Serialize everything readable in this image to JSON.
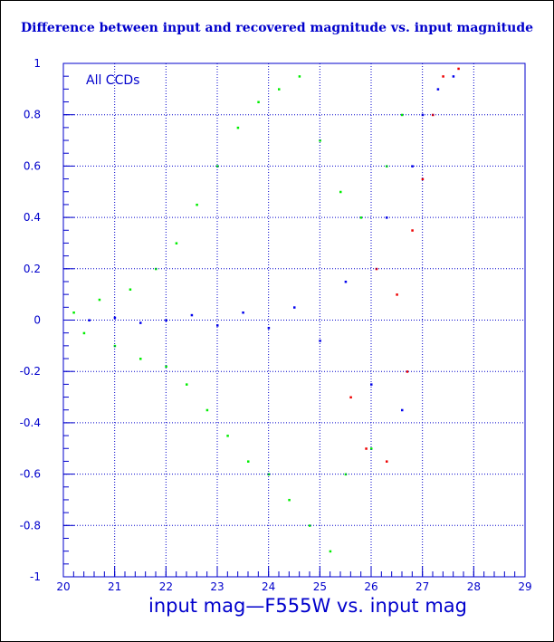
{
  "chart_data": {
    "type": "scatter",
    "title": "Difference between input and recovered magnitude vs. input magnitude",
    "xlabel": "input mag—F555W vs. input mag",
    "ylabel": "",
    "xlim": [
      20,
      29
    ],
    "ylim": [
      -1,
      1
    ],
    "x_ticks": [
      "20",
      "21",
      "22",
      "23",
      "24",
      "25",
      "26",
      "27",
      "28",
      "29"
    ],
    "y_ticks": [
      "1",
      "0.8",
      "0.6",
      "0.4",
      "0.2",
      "0",
      "-0.2",
      "-0.4",
      "-0.6",
      "-0.8",
      "-1"
    ],
    "grid": true,
    "annotation": "All CCDs",
    "series": [
      {
        "color": "#00ee00",
        "description": "widely scattered points, spread grows from about ±0.02 at mag 20 to ±1 by mag 25",
        "points": [
          [
            20.2,
            0.03
          ],
          [
            20.4,
            -0.05
          ],
          [
            20.7,
            0.08
          ],
          [
            21.0,
            -0.1
          ],
          [
            21.3,
            0.12
          ],
          [
            21.5,
            -0.15
          ],
          [
            21.8,
            0.2
          ],
          [
            22.0,
            -0.18
          ],
          [
            22.2,
            0.3
          ],
          [
            22.4,
            -0.25
          ],
          [
            22.6,
            0.45
          ],
          [
            22.8,
            -0.35
          ],
          [
            23.0,
            0.6
          ],
          [
            23.2,
            -0.45
          ],
          [
            23.4,
            0.75
          ],
          [
            23.6,
            -0.55
          ],
          [
            23.8,
            0.85
          ],
          [
            24.0,
            -0.6
          ],
          [
            24.2,
            0.9
          ],
          [
            24.4,
            -0.7
          ],
          [
            24.6,
            0.95
          ],
          [
            24.8,
            -0.8
          ],
          [
            25.0,
            0.7
          ],
          [
            25.2,
            -0.9
          ],
          [
            25.4,
            0.5
          ],
          [
            25.5,
            -0.6
          ],
          [
            25.8,
            0.4
          ],
          [
            26.0,
            -0.5
          ],
          [
            26.3,
            0.6
          ],
          [
            26.6,
            0.8
          ]
        ]
      },
      {
        "color": "#0000ee",
        "description": "dense band near 0, widening with magnitude to about 27.5",
        "points": [
          [
            20.5,
            0.0
          ],
          [
            21.0,
            0.01
          ],
          [
            21.5,
            -0.01
          ],
          [
            22.0,
            0.0
          ],
          [
            22.5,
            0.02
          ],
          [
            23.0,
            -0.02
          ],
          [
            23.5,
            0.03
          ],
          [
            24.0,
            -0.03
          ],
          [
            24.5,
            0.05
          ],
          [
            25.0,
            -0.08
          ],
          [
            25.5,
            0.15
          ],
          [
            26.0,
            -0.25
          ],
          [
            26.3,
            0.4
          ],
          [
            26.6,
            -0.35
          ],
          [
            26.8,
            0.6
          ],
          [
            27.0,
            0.8
          ],
          [
            27.3,
            0.9
          ],
          [
            27.6,
            0.95
          ]
        ]
      },
      {
        "color": "#ee0000",
        "description": "sparse points mostly between mag 25.5 and 27.7",
        "points": [
          [
            25.6,
            -0.3
          ],
          [
            25.9,
            -0.5
          ],
          [
            26.1,
            0.2
          ],
          [
            26.3,
            -0.55
          ],
          [
            26.5,
            0.1
          ],
          [
            26.7,
            -0.2
          ],
          [
            26.8,
            0.35
          ],
          [
            27.0,
            0.55
          ],
          [
            27.2,
            0.8
          ],
          [
            27.4,
            0.95
          ],
          [
            27.7,
            0.98
          ]
        ]
      }
    ]
  }
}
